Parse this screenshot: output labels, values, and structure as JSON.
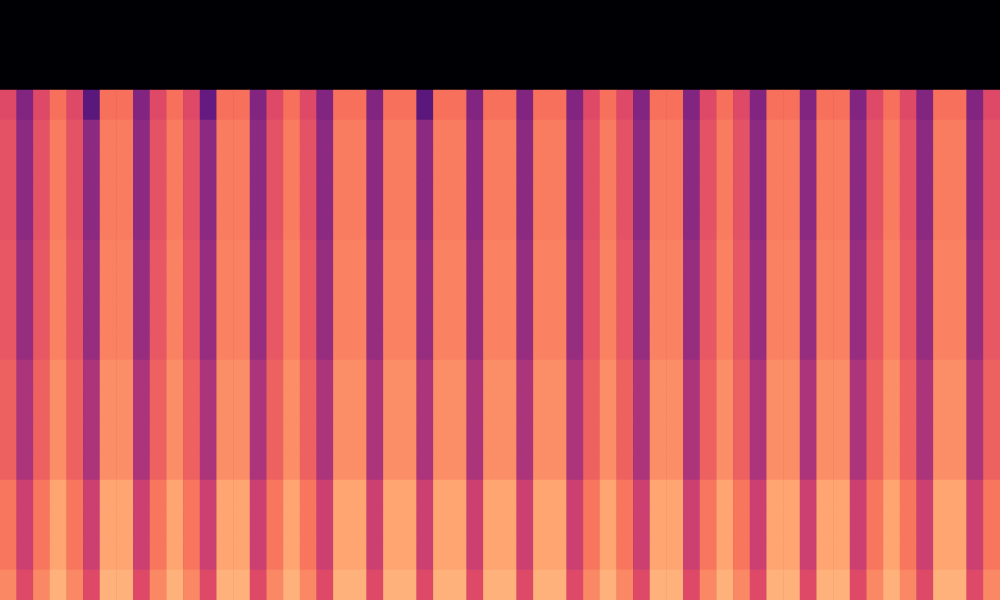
{
  "chart_data": {
    "type": "heatmap",
    "tick_labels": false,
    "zlim": [
      -80,
      0
    ],
    "cells": [
      [
        -80,
        -80,
        -80,
        -80,
        -80,
        -80,
        -80,
        -80,
        -80,
        -80,
        -80,
        -80,
        -80,
        -80,
        -80,
        -80,
        -80,
        -80,
        -80,
        -80,
        -80,
        -80,
        -80,
        -80,
        -80,
        -80,
        -80,
        -80,
        -80,
        -80,
        -80,
        -80,
        -80,
        -80,
        -80,
        -80,
        -80,
        -80,
        -80,
        -80,
        -80,
        -80,
        -80,
        -80,
        -80,
        -80,
        -80,
        -80,
        -80,
        -80,
        -80,
        -80,
        -80,
        -80,
        -80,
        -80,
        -80,
        -80,
        -80,
        -80
      ],
      [
        -80,
        -80,
        -80,
        -80,
        -80,
        -80,
        -80,
        -80,
        -80,
        -80,
        -80,
        -80,
        -80,
        -80,
        -80,
        -80,
        -80,
        -80,
        -80,
        -80,
        -80,
        -80,
        -80,
        -80,
        -80,
        -80,
        -80,
        -80,
        -80,
        -80,
        -80,
        -80,
        -80,
        -80,
        -80,
        -80,
        -80,
        -80,
        -80,
        -80,
        -80,
        -80,
        -80,
        -80,
        -80,
        -80,
        -80,
        -80,
        -80,
        -80,
        -80,
        -80,
        -80,
        -80,
        -80,
        -80,
        -80,
        -80,
        -80,
        -80
      ],
      [
        -80,
        -80,
        -80,
        -80,
        -80,
        -80,
        -80,
        -80,
        -80,
        -80,
        -80,
        -80,
        -80,
        -80,
        -80,
        -80,
        -80,
        -80,
        -80,
        -80,
        -80,
        -80,
        -80,
        -80,
        -80,
        -80,
        -80,
        -80,
        -80,
        -80,
        -80,
        -80,
        -80,
        -80,
        -80,
        -80,
        -80,
        -80,
        -80,
        -80,
        -80,
        -80,
        -80,
        -80,
        -80,
        -80,
        -80,
        -80,
        -80,
        -80,
        -80,
        -80,
        -80,
        -80,
        -80,
        -80,
        -80,
        -80,
        -80,
        -80
      ],
      [
        -32,
        -50,
        -32,
        -24,
        -32,
        -58,
        -24,
        -24,
        -50,
        -32,
        -24,
        -32,
        -56,
        -24,
        -24,
        -50,
        -32,
        -24,
        -32,
        -50,
        -24,
        -24,
        -50,
        -24,
        -24,
        -58,
        -24,
        -24,
        -50,
        -24,
        -24,
        -50,
        -24,
        -24,
        -50,
        -32,
        -24,
        -32,
        -50,
        -24,
        -24,
        -50,
        -32,
        -24,
        -32,
        -50,
        -24,
        -24,
        -50,
        -24,
        -24,
        -50,
        -32,
        -24,
        -32,
        -50,
        -24,
        -24,
        -50,
        -32
      ],
      [
        -30,
        -48,
        -30,
        -22,
        -30,
        -48,
        -22,
        -22,
        -48,
        -30,
        -22,
        -30,
        -48,
        -22,
        -22,
        -48,
        -30,
        -22,
        -30,
        -48,
        -22,
        -22,
        -48,
        -22,
        -22,
        -48,
        -22,
        -22,
        -48,
        -22,
        -22,
        -48,
        -22,
        -22,
        -48,
        -30,
        -22,
        -30,
        -48,
        -22,
        -22,
        -48,
        -30,
        -22,
        -30,
        -48,
        -22,
        -22,
        -48,
        -22,
        -22,
        -48,
        -30,
        -22,
        -30,
        -48,
        -22,
        -22,
        -48,
        -30
      ],
      [
        -30,
        -48,
        -30,
        -22,
        -30,
        -48,
        -22,
        -22,
        -48,
        -30,
        -22,
        -30,
        -48,
        -22,
        -22,
        -48,
        -30,
        -22,
        -30,
        -48,
        -22,
        -22,
        -48,
        -22,
        -22,
        -48,
        -22,
        -22,
        -48,
        -22,
        -22,
        -48,
        -22,
        -22,
        -48,
        -30,
        -22,
        -30,
        -48,
        -22,
        -22,
        -48,
        -30,
        -22,
        -30,
        -48,
        -22,
        -22,
        -48,
        -22,
        -22,
        -48,
        -30,
        -22,
        -30,
        -48,
        -22,
        -22,
        -48,
        -30
      ],
      [
        -30,
        -48,
        -30,
        -22,
        -30,
        -48,
        -22,
        -22,
        -48,
        -30,
        -22,
        -30,
        -48,
        -22,
        -22,
        -48,
        -30,
        -22,
        -30,
        -48,
        -22,
        -22,
        -48,
        -22,
        -22,
        -48,
        -22,
        -22,
        -48,
        -22,
        -22,
        -48,
        -22,
        -22,
        -48,
        -30,
        -22,
        -30,
        -48,
        -22,
        -22,
        -48,
        -30,
        -22,
        -30,
        -48,
        -22,
        -22,
        -48,
        -22,
        -22,
        -48,
        -30,
        -22,
        -30,
        -48,
        -22,
        -22,
        -48,
        -30
      ],
      [
        -30,
        -48,
        -30,
        -22,
        -30,
        -48,
        -22,
        -22,
        -48,
        -30,
        -22,
        -30,
        -48,
        -22,
        -22,
        -48,
        -30,
        -22,
        -30,
        -48,
        -22,
        -22,
        -48,
        -22,
        -22,
        -48,
        -22,
        -22,
        -48,
        -22,
        -22,
        -48,
        -22,
        -22,
        -48,
        -30,
        -22,
        -30,
        -48,
        -22,
        -22,
        -48,
        -30,
        -22,
        -30,
        -48,
        -22,
        -22,
        -48,
        -22,
        -22,
        -48,
        -30,
        -22,
        -30,
        -48,
        -22,
        -22,
        -48,
        -30
      ],
      [
        -29,
        -46,
        -29,
        -21,
        -29,
        -46,
        -21,
        -21,
        -46,
        -29,
        -21,
        -29,
        -46,
        -21,
        -21,
        -46,
        -29,
        -21,
        -29,
        -46,
        -21,
        -21,
        -46,
        -21,
        -21,
        -46,
        -21,
        -21,
        -46,
        -21,
        -21,
        -46,
        -21,
        -21,
        -46,
        -29,
        -21,
        -29,
        -46,
        -21,
        -21,
        -46,
        -29,
        -21,
        -29,
        -46,
        -21,
        -21,
        -46,
        -21,
        -21,
        -46,
        -29,
        -21,
        -29,
        -46,
        -21,
        -21,
        -46,
        -29
      ],
      [
        -29,
        -46,
        -29,
        -21,
        -29,
        -46,
        -21,
        -21,
        -46,
        -29,
        -21,
        -29,
        -46,
        -21,
        -21,
        -46,
        -29,
        -21,
        -29,
        -46,
        -21,
        -21,
        -46,
        -21,
        -21,
        -46,
        -21,
        -21,
        -46,
        -21,
        -21,
        -46,
        -21,
        -21,
        -46,
        -29,
        -21,
        -29,
        -46,
        -21,
        -21,
        -46,
        -29,
        -21,
        -29,
        -46,
        -21,
        -21,
        -46,
        -21,
        -21,
        -46,
        -29,
        -21,
        -29,
        -46,
        -21,
        -21,
        -46,
        -29
      ],
      [
        -29,
        -46,
        -29,
        -21,
        -29,
        -46,
        -21,
        -21,
        -46,
        -29,
        -21,
        -29,
        -46,
        -21,
        -21,
        -46,
        -29,
        -21,
        -29,
        -46,
        -21,
        -21,
        -46,
        -21,
        -21,
        -46,
        -21,
        -21,
        -46,
        -21,
        -21,
        -46,
        -21,
        -21,
        -46,
        -29,
        -21,
        -29,
        -46,
        -21,
        -21,
        -46,
        -29,
        -21,
        -29,
        -46,
        -21,
        -21,
        -46,
        -21,
        -21,
        -46,
        -29,
        -21,
        -29,
        -46,
        -21,
        -21,
        -46,
        -29
      ],
      [
        -29,
        -46,
        -29,
        -21,
        -29,
        -46,
        -21,
        -21,
        -46,
        -29,
        -21,
        -29,
        -46,
        -21,
        -21,
        -46,
        -29,
        -21,
        -29,
        -46,
        -21,
        -21,
        -46,
        -21,
        -21,
        -46,
        -21,
        -21,
        -46,
        -21,
        -21,
        -46,
        -21,
        -21,
        -46,
        -29,
        -21,
        -29,
        -46,
        -21,
        -21,
        -46,
        -29,
        -21,
        -29,
        -46,
        -21,
        -21,
        -46,
        -21,
        -21,
        -46,
        -29,
        -21,
        -29,
        -46,
        -21,
        -21,
        -46,
        -29
      ],
      [
        -27,
        -42,
        -27,
        -19,
        -27,
        -42,
        -19,
        -19,
        -42,
        -27,
        -19,
        -27,
        -42,
        -19,
        -19,
        -42,
        -27,
        -19,
        -27,
        -42,
        -19,
        -19,
        -42,
        -19,
        -19,
        -42,
        -19,
        -19,
        -42,
        -19,
        -19,
        -42,
        -19,
        -19,
        -42,
        -27,
        -19,
        -27,
        -42,
        -19,
        -19,
        -42,
        -27,
        -19,
        -27,
        -42,
        -19,
        -19,
        -42,
        -19,
        -19,
        -42,
        -27,
        -19,
        -27,
        -42,
        -19,
        -19,
        -42,
        -27
      ],
      [
        -27,
        -42,
        -27,
        -19,
        -27,
        -42,
        -19,
        -19,
        -42,
        -27,
        -19,
        -27,
        -42,
        -19,
        -19,
        -42,
        -27,
        -19,
        -27,
        -42,
        -19,
        -19,
        -42,
        -19,
        -19,
        -42,
        -19,
        -19,
        -42,
        -19,
        -19,
        -42,
        -19,
        -19,
        -42,
        -27,
        -19,
        -27,
        -42,
        -19,
        -19,
        -42,
        -27,
        -19,
        -27,
        -42,
        -19,
        -19,
        -42,
        -19,
        -19,
        -42,
        -27,
        -19,
        -27,
        -42,
        -19,
        -19,
        -42,
        -27
      ],
      [
        -27,
        -42,
        -27,
        -19,
        -27,
        -42,
        -19,
        -19,
        -42,
        -27,
        -19,
        -27,
        -42,
        -19,
        -19,
        -42,
        -27,
        -19,
        -27,
        -42,
        -19,
        -19,
        -42,
        -19,
        -19,
        -42,
        -19,
        -19,
        -42,
        -19,
        -19,
        -42,
        -19,
        -19,
        -42,
        -27,
        -19,
        -27,
        -42,
        -19,
        -19,
        -42,
        -27,
        -19,
        -27,
        -42,
        -19,
        -19,
        -42,
        -19,
        -19,
        -42,
        -27,
        -19,
        -27,
        -42,
        -19,
        -19,
        -42,
        -27
      ],
      [
        -27,
        -42,
        -27,
        -19,
        -27,
        -42,
        -19,
        -19,
        -42,
        -27,
        -19,
        -27,
        -42,
        -19,
        -19,
        -42,
        -27,
        -19,
        -27,
        -42,
        -19,
        -19,
        -42,
        -19,
        -19,
        -42,
        -19,
        -19,
        -42,
        -19,
        -19,
        -42,
        -19,
        -19,
        -42,
        -27,
        -19,
        -27,
        -42,
        -19,
        -19,
        -42,
        -27,
        -19,
        -27,
        -42,
        -19,
        -19,
        -42,
        -19,
        -19,
        -42,
        -27,
        -19,
        -27,
        -42,
        -19,
        -19,
        -42,
        -27
      ],
      [
        -23,
        -36,
        -23,
        -15,
        -23,
        -36,
        -15,
        -15,
        -36,
        -23,
        -15,
        -23,
        -36,
        -15,
        -15,
        -36,
        -23,
        -15,
        -23,
        -36,
        -15,
        -15,
        -36,
        -15,
        -15,
        -36,
        -15,
        -15,
        -36,
        -15,
        -15,
        -36,
        -15,
        -15,
        -36,
        -23,
        -15,
        -23,
        -36,
        -15,
        -15,
        -36,
        -23,
        -15,
        -23,
        -36,
        -15,
        -15,
        -36,
        -15,
        -15,
        -36,
        -23,
        -15,
        -23,
        -36,
        -15,
        -15,
        -36,
        -23
      ],
      [
        -23,
        -36,
        -23,
        -15,
        -23,
        -36,
        -15,
        -15,
        -36,
        -23,
        -15,
        -23,
        -36,
        -15,
        -15,
        -36,
        -23,
        -15,
        -23,
        -36,
        -15,
        -15,
        -36,
        -15,
        -15,
        -36,
        -15,
        -15,
        -36,
        -15,
        -15,
        -36,
        -15,
        -15,
        -36,
        -23,
        -15,
        -23,
        -36,
        -15,
        -15,
        -36,
        -23,
        -15,
        -23,
        -36,
        -15,
        -15,
        -36,
        -15,
        -15,
        -36,
        -23,
        -15,
        -23,
        -36,
        -15,
        -15,
        -36,
        -23
      ],
      [
        -23,
        -36,
        -23,
        -15,
        -23,
        -36,
        -15,
        -15,
        -36,
        -23,
        -15,
        -23,
        -36,
        -15,
        -15,
        -36,
        -23,
        -15,
        -23,
        -36,
        -15,
        -15,
        -36,
        -15,
        -15,
        -36,
        -15,
        -15,
        -36,
        -15,
        -15,
        -36,
        -15,
        -15,
        -36,
        -23,
        -15,
        -23,
        -36,
        -15,
        -15,
        -36,
        -23,
        -15,
        -23,
        -36,
        -15,
        -15,
        -36,
        -15,
        -15,
        -36,
        -23,
        -15,
        -23,
        -36,
        -15,
        -15,
        -36,
        -23
      ],
      [
        -20,
        -32,
        -20,
        -13,
        -20,
        -32,
        -13,
        -13,
        -32,
        -20,
        -13,
        -20,
        -32,
        -13,
        -13,
        -32,
        -20,
        -13,
        -20,
        -32,
        -13,
        -13,
        -32,
        -13,
        -13,
        -32,
        -13,
        -13,
        -32,
        -13,
        -13,
        -32,
        -13,
        -13,
        -32,
        -20,
        -13,
        -20,
        -32,
        -13,
        -13,
        -32,
        -20,
        -13,
        -20,
        -32,
        -13,
        -13,
        -32,
        -13,
        -13,
        -32,
        -20,
        -13,
        -20,
        -32,
        -13,
        -13,
        -32,
        -20
      ]
    ]
  }
}
